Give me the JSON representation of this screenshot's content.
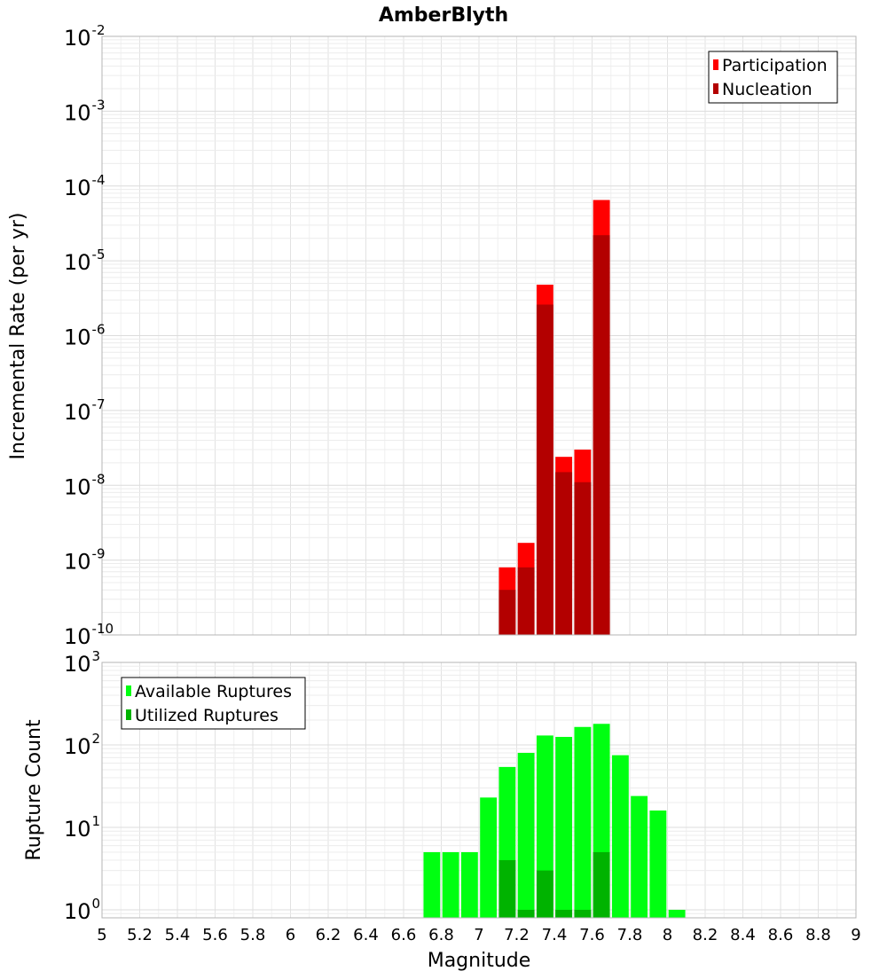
{
  "chart_data": [
    {
      "type": "bar",
      "title": "AmberBlyth",
      "xlabel": "Magnitude",
      "ylabel": "Incremental Rate (per yr)",
      "yscale": "log",
      "xlim": [
        5,
        9
      ],
      "ylim": [
        1e-10,
        0.01
      ],
      "ytick_exponents": [
        -10,
        -9,
        -8,
        -7,
        -6,
        -5,
        -4,
        -3,
        -2
      ],
      "grid": true,
      "legend": "top-right",
      "bin_width": 0.1,
      "series": [
        {
          "name": "Participation",
          "color": "#ff0000",
          "x": [
            7.15,
            7.25,
            7.35,
            7.45,
            7.55,
            7.65
          ],
          "values": [
            8e-10,
            1.7e-09,
            4.8e-06,
            2.4e-08,
            3e-08,
            6.5e-05
          ]
        },
        {
          "name": "Nucleation",
          "color": "#b30000",
          "x": [
            7.15,
            7.25,
            7.35,
            7.45,
            7.55,
            7.65
          ],
          "values": [
            4e-10,
            8e-10,
            2.6e-06,
            1.5e-08,
            1.1e-08,
            2.2e-05
          ]
        }
      ]
    },
    {
      "type": "bar",
      "xlabel": "Magnitude",
      "ylabel": "Rupture Count",
      "yscale": "log",
      "xlim": [
        5,
        9
      ],
      "ylim": [
        0.8,
        1000
      ],
      "ytick_exponents": [
        0,
        1,
        2,
        3
      ],
      "xticks": [
        "5",
        "5.2",
        "5.4",
        "5.6",
        "5.8",
        "6",
        "6.2",
        "6.4",
        "6.6",
        "6.8",
        "7",
        "7.2",
        "7.4",
        "7.6",
        "7.8",
        "8",
        "8.2",
        "8.4",
        "8.6",
        "8.8",
        "9"
      ],
      "grid": true,
      "legend": "top-left",
      "bin_width": 0.1,
      "series": [
        {
          "name": "Available Ruptures",
          "color": "#00ff11",
          "x": [
            6.75,
            6.85,
            6.95,
            7.05,
            7.15,
            7.25,
            7.35,
            7.45,
            7.55,
            7.65,
            7.75,
            7.85,
            7.95,
            8.05
          ],
          "values": [
            5,
            5,
            5,
            23,
            54,
            80,
            130,
            125,
            165,
            180,
            75,
            24,
            16,
            1
          ]
        },
        {
          "name": "Utilized Ruptures",
          "color": "#00b300",
          "x": [
            7.15,
            7.25,
            7.35,
            7.45,
            7.55,
            7.65
          ],
          "values": [
            4,
            1,
            3,
            1,
            1,
            5
          ]
        }
      ]
    }
  ]
}
